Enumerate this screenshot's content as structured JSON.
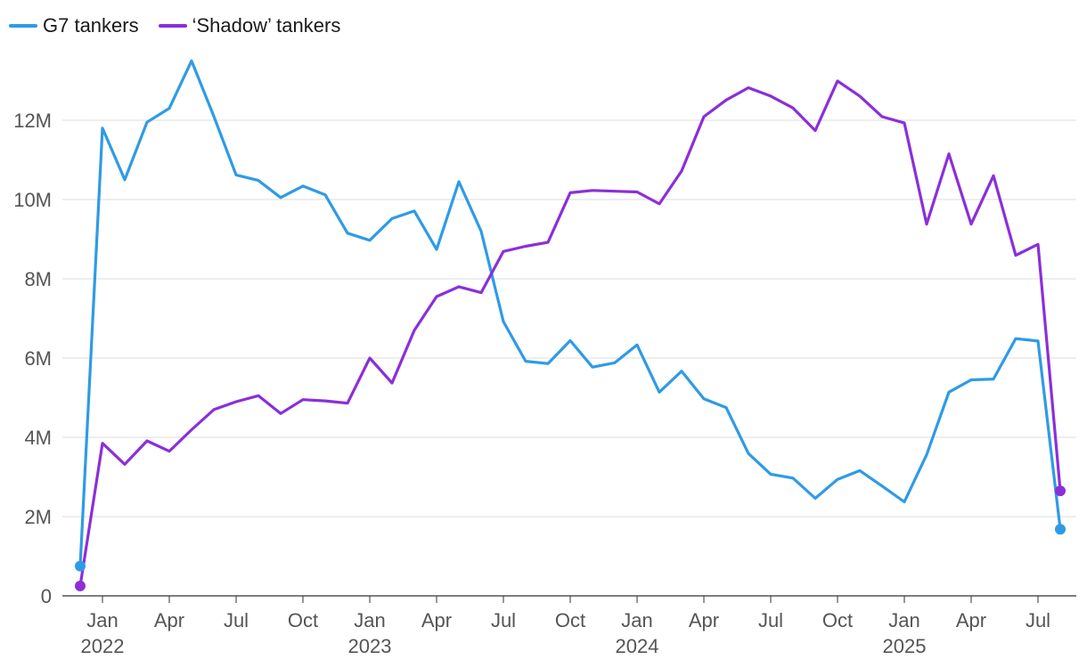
{
  "chart_data": {
    "type": "line",
    "title": "",
    "xlabel": "",
    "ylabel": "",
    "x": [
      "2021-12",
      "2022-01",
      "2022-02",
      "2022-03",
      "2022-04",
      "2022-05",
      "2022-06",
      "2022-07",
      "2022-08",
      "2022-09",
      "2022-10",
      "2022-11",
      "2022-12",
      "2023-01",
      "2023-02",
      "2023-03",
      "2023-04",
      "2023-05",
      "2023-06",
      "2023-07",
      "2023-08",
      "2023-09",
      "2023-10",
      "2023-11",
      "2023-12",
      "2024-01",
      "2024-02",
      "2024-03",
      "2024-04",
      "2024-05",
      "2024-06",
      "2024-07",
      "2024-08",
      "2024-09",
      "2024-10",
      "2024-11",
      "2024-12",
      "2025-01",
      "2025-02",
      "2025-03",
      "2025-04",
      "2025-05",
      "2025-06",
      "2025-07",
      "2025-08"
    ],
    "ylim": [
      0,
      13800000
    ],
    "yticks": [
      0,
      2000000,
      4000000,
      6000000,
      8000000,
      10000000,
      12000000
    ],
    "ytick_labels": [
      "0",
      "2M",
      "4M",
      "6M",
      "8M",
      "10M",
      "12M"
    ],
    "xticks": [
      {
        "date": "2022-01",
        "label": "Jan",
        "year": "2022"
      },
      {
        "date": "2022-04",
        "label": "Apr",
        "year": ""
      },
      {
        "date": "2022-07",
        "label": "Jul",
        "year": ""
      },
      {
        "date": "2022-10",
        "label": "Oct",
        "year": ""
      },
      {
        "date": "2023-01",
        "label": "Jan",
        "year": "2023"
      },
      {
        "date": "2023-04",
        "label": "Apr",
        "year": ""
      },
      {
        "date": "2023-07",
        "label": "Jul",
        "year": ""
      },
      {
        "date": "2023-10",
        "label": "Oct",
        "year": ""
      },
      {
        "date": "2024-01",
        "label": "Jan",
        "year": "2024"
      },
      {
        "date": "2024-04",
        "label": "Apr",
        "year": ""
      },
      {
        "date": "2024-07",
        "label": "Jul",
        "year": ""
      },
      {
        "date": "2024-10",
        "label": "Oct",
        "year": ""
      },
      {
        "date": "2025-01",
        "label": "Jan",
        "year": "2025"
      },
      {
        "date": "2025-04",
        "label": "Apr",
        "year": ""
      },
      {
        "date": "2025-07",
        "label": "Jul",
        "year": ""
      }
    ],
    "grid": true,
    "legend_position": "top-left",
    "series": [
      {
        "name": "G7 tankers",
        "color": "#2E9BE6",
        "values": [
          750000,
          11800000,
          10500000,
          11950000,
          12300000,
          13500000,
          12100000,
          10620000,
          10480000,
          10050000,
          10340000,
          10120000,
          9150000,
          8970000,
          9520000,
          9710000,
          8740000,
          10450000,
          9200000,
          6920000,
          5920000,
          5860000,
          6440000,
          5770000,
          5880000,
          6330000,
          5140000,
          5670000,
          4970000,
          4750000,
          3590000,
          3070000,
          2970000,
          2460000,
          2940000,
          3160000,
          2770000,
          2370000,
          3560000,
          5140000,
          5450000,
          5470000,
          6490000,
          6430000,
          1680000
        ]
      },
      {
        "name": "‘Shadow’ tankers",
        "color": "#8B2FD9",
        "values": [
          250000,
          3850000,
          3320000,
          3910000,
          3650000,
          4190000,
          4700000,
          4900000,
          5050000,
          4600000,
          4950000,
          4920000,
          4860000,
          6000000,
          5370000,
          6700000,
          7550000,
          7800000,
          7650000,
          8690000,
          8820000,
          8920000,
          10170000,
          10230000,
          10210000,
          10190000,
          9890000,
          10720000,
          12090000,
          12510000,
          12820000,
          12610000,
          12310000,
          11740000,
          12990000,
          12610000,
          12090000,
          11930000,
          9380000,
          11150000,
          9380000,
          10600000,
          8590000,
          8870000,
          2650000
        ]
      }
    ]
  }
}
